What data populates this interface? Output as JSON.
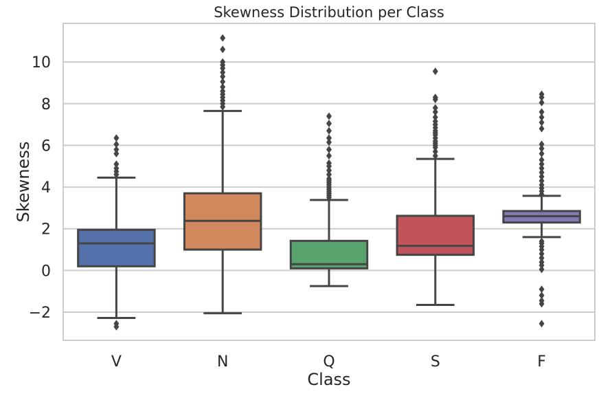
{
  "chart_data": {
    "type": "box",
    "title": "Skewness Distribution per Class",
    "xlabel": "Class",
    "ylabel": "Skewness",
    "ylim": [
      -3.35,
      11.85
    ],
    "yticks": [
      -2,
      0,
      2,
      4,
      6,
      8,
      10
    ],
    "ytick_labels": [
      "−2",
      "0",
      "2",
      "4",
      "6",
      "8",
      "10"
    ],
    "grid": "horizontal",
    "categories": [
      "V",
      "N",
      "Q",
      "S",
      "F"
    ],
    "colors": [
      "#5471ab",
      "#d1885c",
      "#59a36e",
      "#c0545a",
      "#8278b5"
    ],
    "series": [
      {
        "category": "V",
        "whisker_low": -2.28,
        "q1": 0.2,
        "median": 1.3,
        "q3": 1.95,
        "whisker_high": 4.45,
        "outliers": [
          -2.55,
          -2.7,
          4.6,
          4.75,
          4.9,
          5.1,
          5.6,
          5.8,
          6.05,
          6.35
        ]
      },
      {
        "category": "N",
        "whisker_low": -2.05,
        "q1": 1.0,
        "median": 2.38,
        "q3": 3.7,
        "whisker_high": 7.65,
        "outliers": [
          7.85,
          8.0,
          8.15,
          8.3,
          8.45,
          8.6,
          8.8,
          9.05,
          9.3,
          9.5,
          9.7,
          9.85,
          10.0,
          10.6,
          11.15
        ]
      },
      {
        "category": "Q",
        "whisker_low": -0.75,
        "q1": 0.1,
        "median": 0.3,
        "q3": 1.42,
        "whisker_high": 3.38,
        "outliers": [
          3.5,
          3.6,
          3.7,
          3.8,
          3.9,
          4.0,
          4.1,
          4.2,
          4.3,
          4.4,
          4.6,
          4.8,
          5.0,
          5.15,
          5.5,
          5.8,
          6.15,
          6.35,
          6.7,
          7.05,
          7.4
        ]
      },
      {
        "category": "S",
        "whisker_low": -1.65,
        "q1": 0.75,
        "median": 1.18,
        "q3": 2.62,
        "whisker_high": 5.35,
        "outliers": [
          5.5,
          5.7,
          5.9,
          6.0,
          6.1,
          6.2,
          6.35,
          6.5,
          6.6,
          6.7,
          6.85,
          7.0,
          7.15,
          7.35,
          7.6,
          7.8,
          8.2,
          8.3,
          9.55
        ]
      },
      {
        "category": "F",
        "whisker_low": 1.6,
        "q1": 2.3,
        "median": 2.6,
        "q3": 2.85,
        "whisker_high": 3.58,
        "outliers": [
          -2.55,
          -1.6,
          -1.45,
          -1.2,
          -0.9,
          0.05,
          0.25,
          0.4,
          0.6,
          0.8,
          1.0,
          1.15,
          1.3,
          1.4,
          3.65,
          3.8,
          3.95,
          4.1,
          4.3,
          4.5,
          4.7,
          4.9,
          5.1,
          5.3,
          5.6,
          5.85,
          6.05,
          6.8,
          7.1,
          7.35,
          7.6,
          8.05,
          8.3,
          8.45
        ]
      }
    ]
  }
}
